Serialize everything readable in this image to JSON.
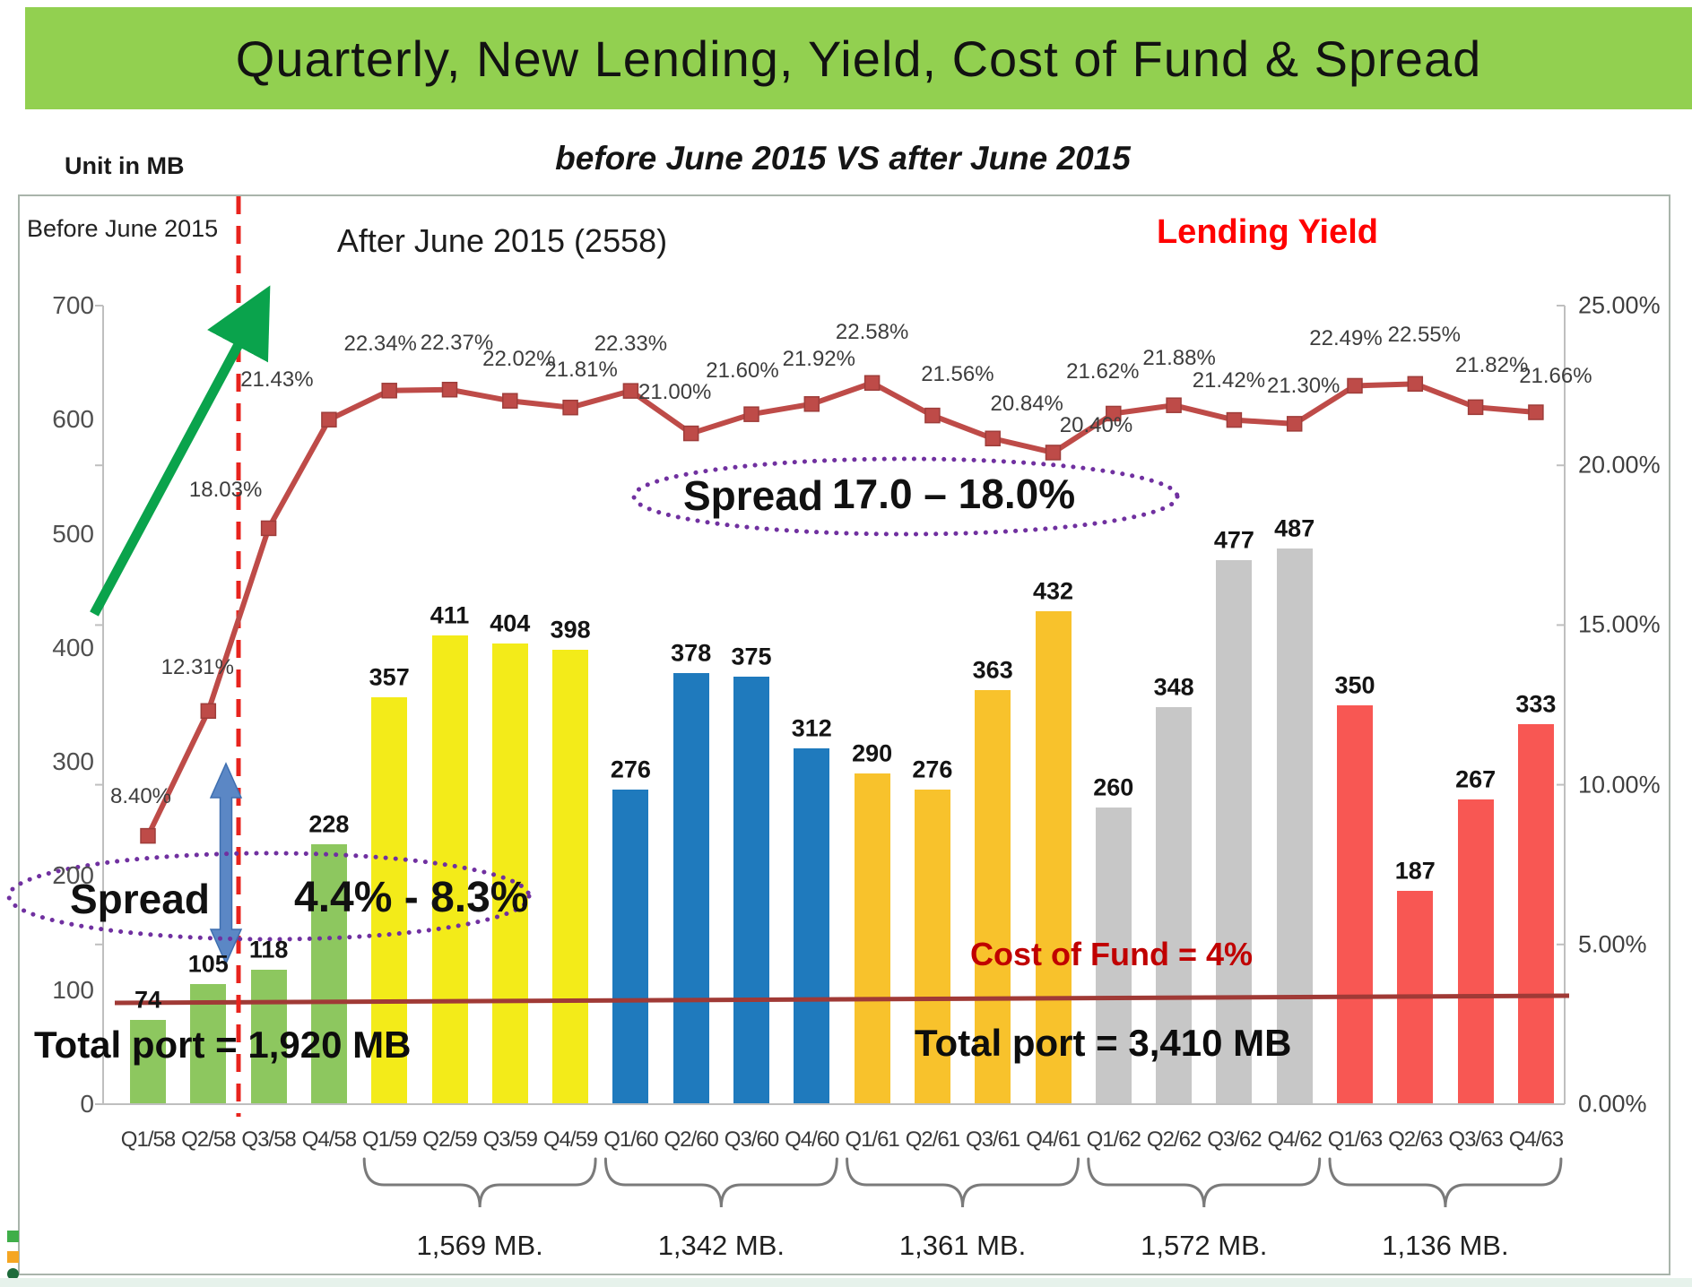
{
  "header": {
    "title": "Quarterly, New Lending, Yield, Cost of Fund & Spread",
    "bg_color": "#92D050"
  },
  "labels": {
    "unit": "Unit in MB",
    "subtitle": "before June 2015  VS  after June 2015",
    "before_period": "Before June 2015",
    "after_period": "After June 2015 (2558)",
    "lending_yield_legend": "Lending Yield",
    "cost_of_fund": "Cost of Fund = 4%",
    "total_port_left": "Total port  =  1,920 MB",
    "total_port_right": "Total port  =  3,410 MB",
    "spread_left_title": "Spread",
    "spread_left_value": "4.4% - 8.3%",
    "spread_right_title": "Spread",
    "spread_right_value": "17.0 – 18.0%"
  },
  "chart_data": {
    "type": "bar+line combo",
    "categories": [
      "Q1/58",
      "Q2/58",
      "Q3/58",
      "Q4/58",
      "Q1/59",
      "Q2/59",
      "Q3/59",
      "Q4/59",
      "Q1/60",
      "Q2/60",
      "Q3/60",
      "Q4/60",
      "Q1/61",
      "Q2/61",
      "Q3/61",
      "Q4/61",
      "Q1/62",
      "Q2/62",
      "Q3/62",
      "Q4/62",
      "Q1/63",
      "Q2/63",
      "Q3/63",
      "Q4/63"
    ],
    "bar_series": {
      "name": "New Lending (MB)",
      "values": [
        74,
        105,
        118,
        228,
        357,
        411,
        404,
        398,
        276,
        378,
        375,
        312,
        290,
        276,
        363,
        432,
        260,
        348,
        477,
        487,
        350,
        187,
        267,
        333
      ],
      "group_size": 4,
      "group_colors": [
        "#8DC75F",
        "#F3EB19",
        "#1F7ABD",
        "#F8C22C",
        "#C7C7C7",
        "#F85753"
      ]
    },
    "line_series": {
      "name": "Lending Yield (%)",
      "values": [
        8.4,
        12.31,
        18.03,
        21.43,
        22.34,
        22.37,
        22.02,
        21.81,
        22.33,
        21.0,
        21.6,
        21.92,
        22.58,
        21.56,
        20.84,
        20.4,
        21.62,
        21.88,
        21.42,
        21.3,
        22.49,
        22.55,
        21.82,
        21.66
      ],
      "color": "#BE4B48"
    },
    "left_axis": {
      "title": "Unit in MB",
      "min": 0,
      "max": 700,
      "ticks": [
        700,
        600,
        500,
        400,
        300,
        200,
        100,
        0
      ]
    },
    "right_axis": {
      "min": 0,
      "max": 25,
      "ticks": [
        "25.00%",
        "20.00%",
        "15.00%",
        "10.00%",
        "5.00%",
        "0.00%"
      ]
    },
    "grid": "off",
    "group_totals": [
      "1,569 MB.",
      "1,342 MB.",
      "1,361 MB.",
      "1,572 MB.",
      "1,136 MB."
    ],
    "cost_of_fund_line": {
      "label": "Cost of Fund = 4%",
      "drawn_at_percent": 3.2,
      "color": "#A03A36"
    },
    "divider": {
      "style": "red dashed vertical",
      "between": [
        "Q2/58",
        "Q3/58"
      ],
      "color": "#E8231D"
    },
    "annotations": {
      "spread_before": "Spread 4.4% - 8.3%",
      "spread_after": "Spread 17.0 – 18.0%",
      "total_before": "Total port = 1,920 MB",
      "total_after": "Total port = 3,410 MB",
      "oval_color": "#7030A0",
      "green_arrow": "upward trend arrow",
      "blue_arrow": "vertical double-headed spread arrow"
    }
  }
}
